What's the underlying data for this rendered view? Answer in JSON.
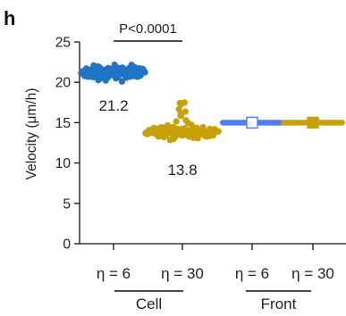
{
  "panel_label": "h",
  "colors": {
    "blue": "#1f74c4",
    "gold": "#c8a008",
    "front_blue": "#4a7ff0",
    "front_gold": "#c8a008",
    "axis": "#111111"
  },
  "chart_data": {
    "type": "scatter",
    "title": "",
    "xlabel": "",
    "ylabel": "Velocity (μm/h)",
    "ylim": [
      0,
      25
    ],
    "yticks": [
      0,
      5,
      10,
      15,
      20,
      25
    ],
    "categories": [
      "η = 6",
      "η = 30",
      "η = 6",
      "η = 30"
    ],
    "groups": [
      {
        "label": "Cell",
        "categories": [
          0,
          1
        ]
      },
      {
        "label": "Front",
        "categories": [
          2,
          3
        ]
      }
    ],
    "series": [
      {
        "category": "η = 6",
        "group": "Cell",
        "kind": "swarm",
        "mean": 21.2,
        "range": [
          19.9,
          22.9
        ],
        "color": "blue"
      },
      {
        "category": "η = 30",
        "group": "Cell",
        "kind": "swarm",
        "mean": 13.8,
        "range": [
          12.3,
          17.6
        ],
        "color": "gold"
      },
      {
        "category": "η = 6",
        "group": "Front",
        "kind": "mean_marker",
        "mean": 15.0,
        "marker": "open-square",
        "color": "front_blue"
      },
      {
        "category": "η = 30",
        "group": "Front",
        "kind": "mean_marker",
        "mean": 15.0,
        "marker": "filled-square",
        "color": "front_gold"
      }
    ],
    "data_labels": [
      "21.2",
      "13.8"
    ],
    "annotations": [
      {
        "text": "P<0.0001",
        "between": [
          0,
          1
        ]
      }
    ],
    "grid": false,
    "legend": "none"
  }
}
